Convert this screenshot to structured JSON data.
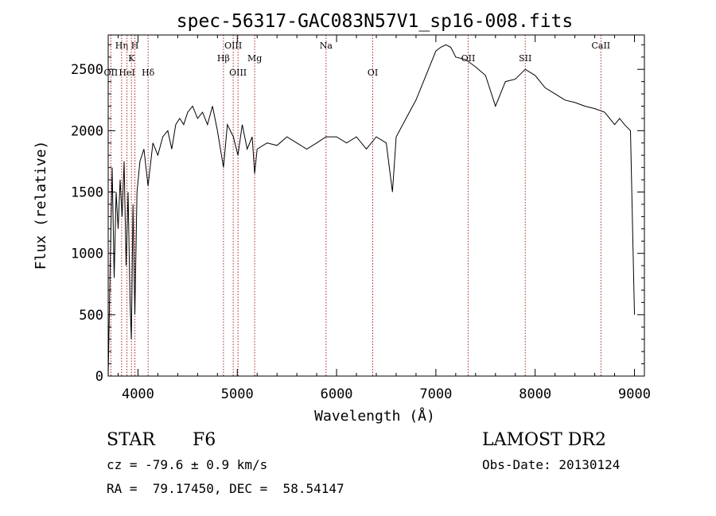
{
  "chart_data": {
    "type": "line",
    "title": "spec-56317-GAC083N57V1_sp16-008.fits",
    "xlabel": "Wavelength (Å)",
    "ylabel": "Flux (relative)",
    "xlim": [
      3700,
      9100
    ],
    "ylim": [
      0,
      2780
    ],
    "xticks": [
      4000,
      5000,
      6000,
      7000,
      8000,
      9000
    ],
    "yticks": [
      0,
      500,
      1000,
      1500,
      2000,
      2500
    ],
    "grid": false,
    "line_color": "#000000",
    "marker_color": "#b22222",
    "series": [
      {
        "x": [
          3700,
          3720,
          3740,
          3760,
          3780,
          3800,
          3820,
          3840,
          3860,
          3880,
          3900,
          3920,
          3933,
          3950,
          3968,
          3990,
          4020,
          4060,
          4101,
          4150,
          4200,
          4250,
          4300,
          4340,
          4380,
          4420,
          4460,
          4500,
          4550,
          4600,
          4650,
          4700,
          4750,
          4800,
          4861,
          4900,
          4960,
          5007,
          5050,
          5100,
          5150,
          5175,
          5200,
          5300,
          5400,
          5500,
          5600,
          5700,
          5800,
          5893,
          6000,
          6100,
          6200,
          6300,
          6400,
          6500,
          6563,
          6600,
          6700,
          6800,
          6900,
          7000,
          7050,
          7100,
          7150,
          7200,
          7300,
          7400,
          7500,
          7600,
          7700,
          7800,
          7900,
          8000,
          8100,
          8200,
          8300,
          8400,
          8500,
          8600,
          8700,
          8800,
          8850,
          8900,
          8960,
          9000
        ],
        "y": [
          0,
          900,
          1700,
          800,
          1500,
          1200,
          1600,
          1300,
          1750,
          900,
          1500,
          600,
          300,
          1400,
          500,
          1500,
          1750,
          1850,
          1550,
          1900,
          1800,
          1950,
          2000,
          1850,
          2050,
          2100,
          2050,
          2150,
          2200,
          2100,
          2150,
          2050,
          2200,
          2000,
          1700,
          2050,
          1950,
          1800,
          2050,
          1850,
          1950,
          1650,
          1850,
          1900,
          1880,
          1950,
          1900,
          1850,
          1900,
          1950,
          1950,
          1900,
          1950,
          1850,
          1950,
          1900,
          1500,
          1950,
          2100,
          2250,
          2450,
          2650,
          2680,
          2700,
          2680,
          2600,
          2580,
          2520,
          2450,
          2200,
          2400,
          2420,
          2500,
          2450,
          2350,
          2300,
          2250,
          2230,
          2200,
          2180,
          2150,
          2050,
          2100,
          2050,
          2000,
          500
        ]
      }
    ],
    "line_markers": [
      {
        "label": "OII",
        "wavelength": 3727,
        "level": 3
      },
      {
        "label": "Hη",
        "wavelength": 3835,
        "level": 1
      },
      {
        "label": "HeI",
        "wavelength": 3889,
        "level": 3
      },
      {
        "label": "K",
        "wavelength": 3934,
        "level": 2
      },
      {
        "label": "H",
        "wavelength": 3969,
        "level": 1
      },
      {
        "label": "Hδ",
        "wavelength": 4102,
        "level": 3
      },
      {
        "label": "Hβ",
        "wavelength": 4861,
        "level": 2
      },
      {
        "label": "OIII",
        "wavelength": 4959,
        "level": 1
      },
      {
        "label": "OIII",
        "wavelength": 5007,
        "level": 3
      },
      {
        "label": "Mg",
        "wavelength": 5175,
        "level": 2
      },
      {
        "label": "Na",
        "wavelength": 5894,
        "level": 1
      },
      {
        "label": "OI",
        "wavelength": 6364,
        "level": 3
      },
      {
        "label": "OII",
        "wavelength": 7325,
        "level": 2
      },
      {
        "label": "SII",
        "wavelength": 7900,
        "level": 2
      },
      {
        "label": "CaII",
        "wavelength": 8662,
        "level": 1
      }
    ]
  },
  "info": {
    "object_class": "STAR",
    "subclass": "F6",
    "survey": "LAMOST DR2",
    "cz": "cz = -79.6 ± 0.9 km/s",
    "obs_date": "Obs-Date: 20130124",
    "coords": "RA =  79.17450, DEC =  58.54147"
  }
}
